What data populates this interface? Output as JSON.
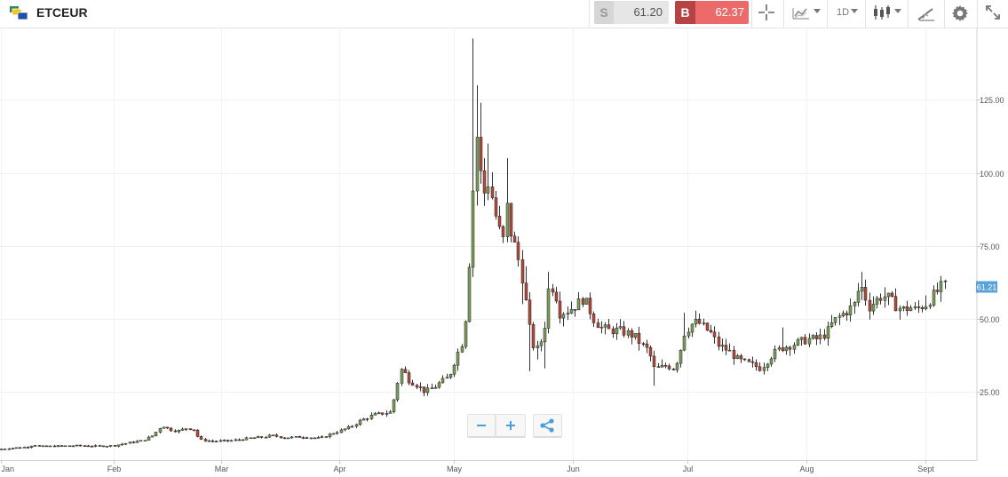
{
  "header": {
    "symbol": "ETCEUR",
    "sell_label": "S",
    "sell_price": "61.20",
    "buy_label": "B",
    "buy_price": "62.37",
    "period": "1D"
  },
  "icons": [
    "instrument-logo-icon",
    "crosshair-icon",
    "line-chart-icon",
    "candlestick-icon",
    "draw-icon",
    "gear-icon",
    "fullscreen-icon",
    "minus-icon",
    "plus-icon",
    "share-icon",
    "caret-down-icon"
  ],
  "colors": {
    "up": "#7a9e5a",
    "down": "#b24a3c",
    "last_price_tag": "#5aa3d9",
    "sell_bg": "#e6e6e6",
    "buy_bg": "#ec6a6a"
  },
  "chart_data": {
    "type": "candlestick",
    "symbol": "ETCEUR",
    "timeframe": "1D",
    "x_ticks": [
      "Jan",
      "Feb",
      "Mar",
      "Apr",
      "May",
      "Jun",
      "Jul",
      "Aug",
      "Sept"
    ],
    "y_ticks": [
      "25.00",
      "50.00",
      "75.00",
      "100.00",
      "125.00"
    ],
    "ylim": [
      0,
      146
    ],
    "last_price": "61.21",
    "grid": true,
    "series": [
      {
        "month": "Jan",
        "approx_close": 5.5
      },
      {
        "month": "Feb",
        "approx_close": 7
      },
      {
        "month": "Feb-mid",
        "approx_close": 12
      },
      {
        "month": "Mar",
        "approx_close": 8
      },
      {
        "month": "Apr",
        "approx_close": 12
      },
      {
        "month": "Apr-mid",
        "approx_close": 27
      },
      {
        "month": "May",
        "approx_close": 50
      },
      {
        "month": "May-peak",
        "approx_close": 125
      },
      {
        "month": "Jun",
        "approx_close": 55
      },
      {
        "month": "Jun-late",
        "approx_close": 34
      },
      {
        "month": "Jul",
        "approx_close": 47
      },
      {
        "month": "Aug",
        "approx_close": 40
      },
      {
        "month": "Aug-mid",
        "approx_close": 60
      },
      {
        "month": "Sept",
        "approx_close": 54
      },
      {
        "month": "Sept-last",
        "approx_close": 61.21
      }
    ]
  }
}
